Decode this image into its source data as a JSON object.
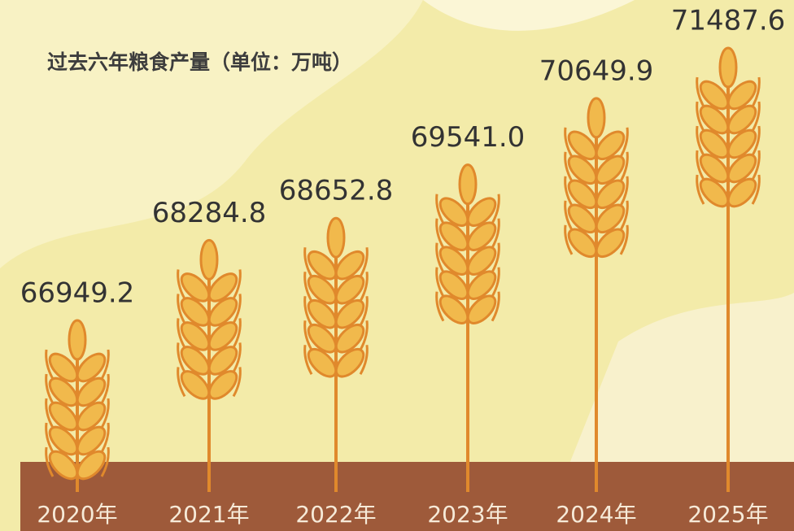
{
  "chart_data": {
    "type": "bar",
    "title": "过去六年粮食产量（单位：万吨）",
    "categories": [
      "2020年",
      "2021年",
      "2022年",
      "2023年",
      "2024年",
      "2025年"
    ],
    "values": [
      66949.2,
      68284.8,
      68652.8,
      69541.0,
      70649.9,
      71487.6
    ],
    "value_labels": [
      "66949.2",
      "68284.8",
      "68652.8",
      "69541.0",
      "70649.9",
      "71487.6"
    ],
    "color": "#f1b94c"
  }
}
